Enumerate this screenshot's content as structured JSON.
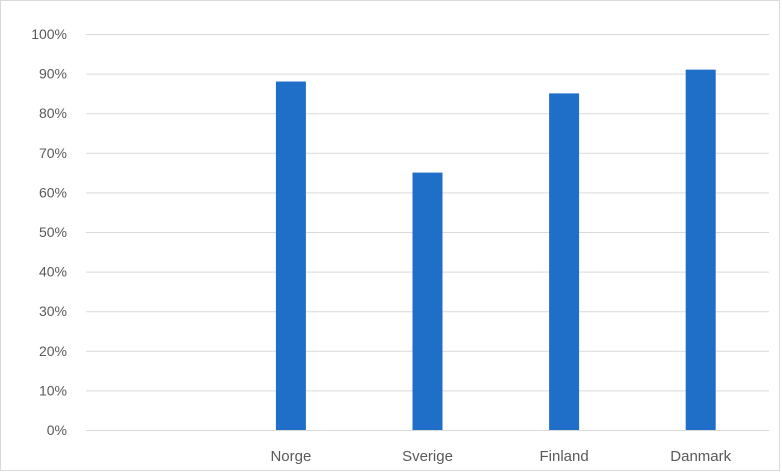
{
  "chart_data": {
    "type": "bar",
    "categories": [
      "",
      "Norge",
      "Sverige",
      "Finland",
      "Danmark"
    ],
    "values": [
      null,
      0.88,
      0.65,
      0.85,
      0.91
    ],
    "ylim": [
      0,
      1
    ],
    "yticks": [
      0,
      0.1,
      0.2,
      0.3,
      0.4,
      0.5,
      0.6,
      0.7,
      0.8,
      0.9,
      1.0
    ],
    "ytick_labels": [
      "0%",
      "10%",
      "20%",
      "30%",
      "40%",
      "50%",
      "60%",
      "70%",
      "80%",
      "90%",
      "100%"
    ],
    "title": "",
    "xlabel": "",
    "ylabel": "",
    "grid": true,
    "legend": "none",
    "colors": {
      "bar": "#1f6ec8",
      "grid": "#d9d9d9",
      "text": "#595959"
    }
  }
}
